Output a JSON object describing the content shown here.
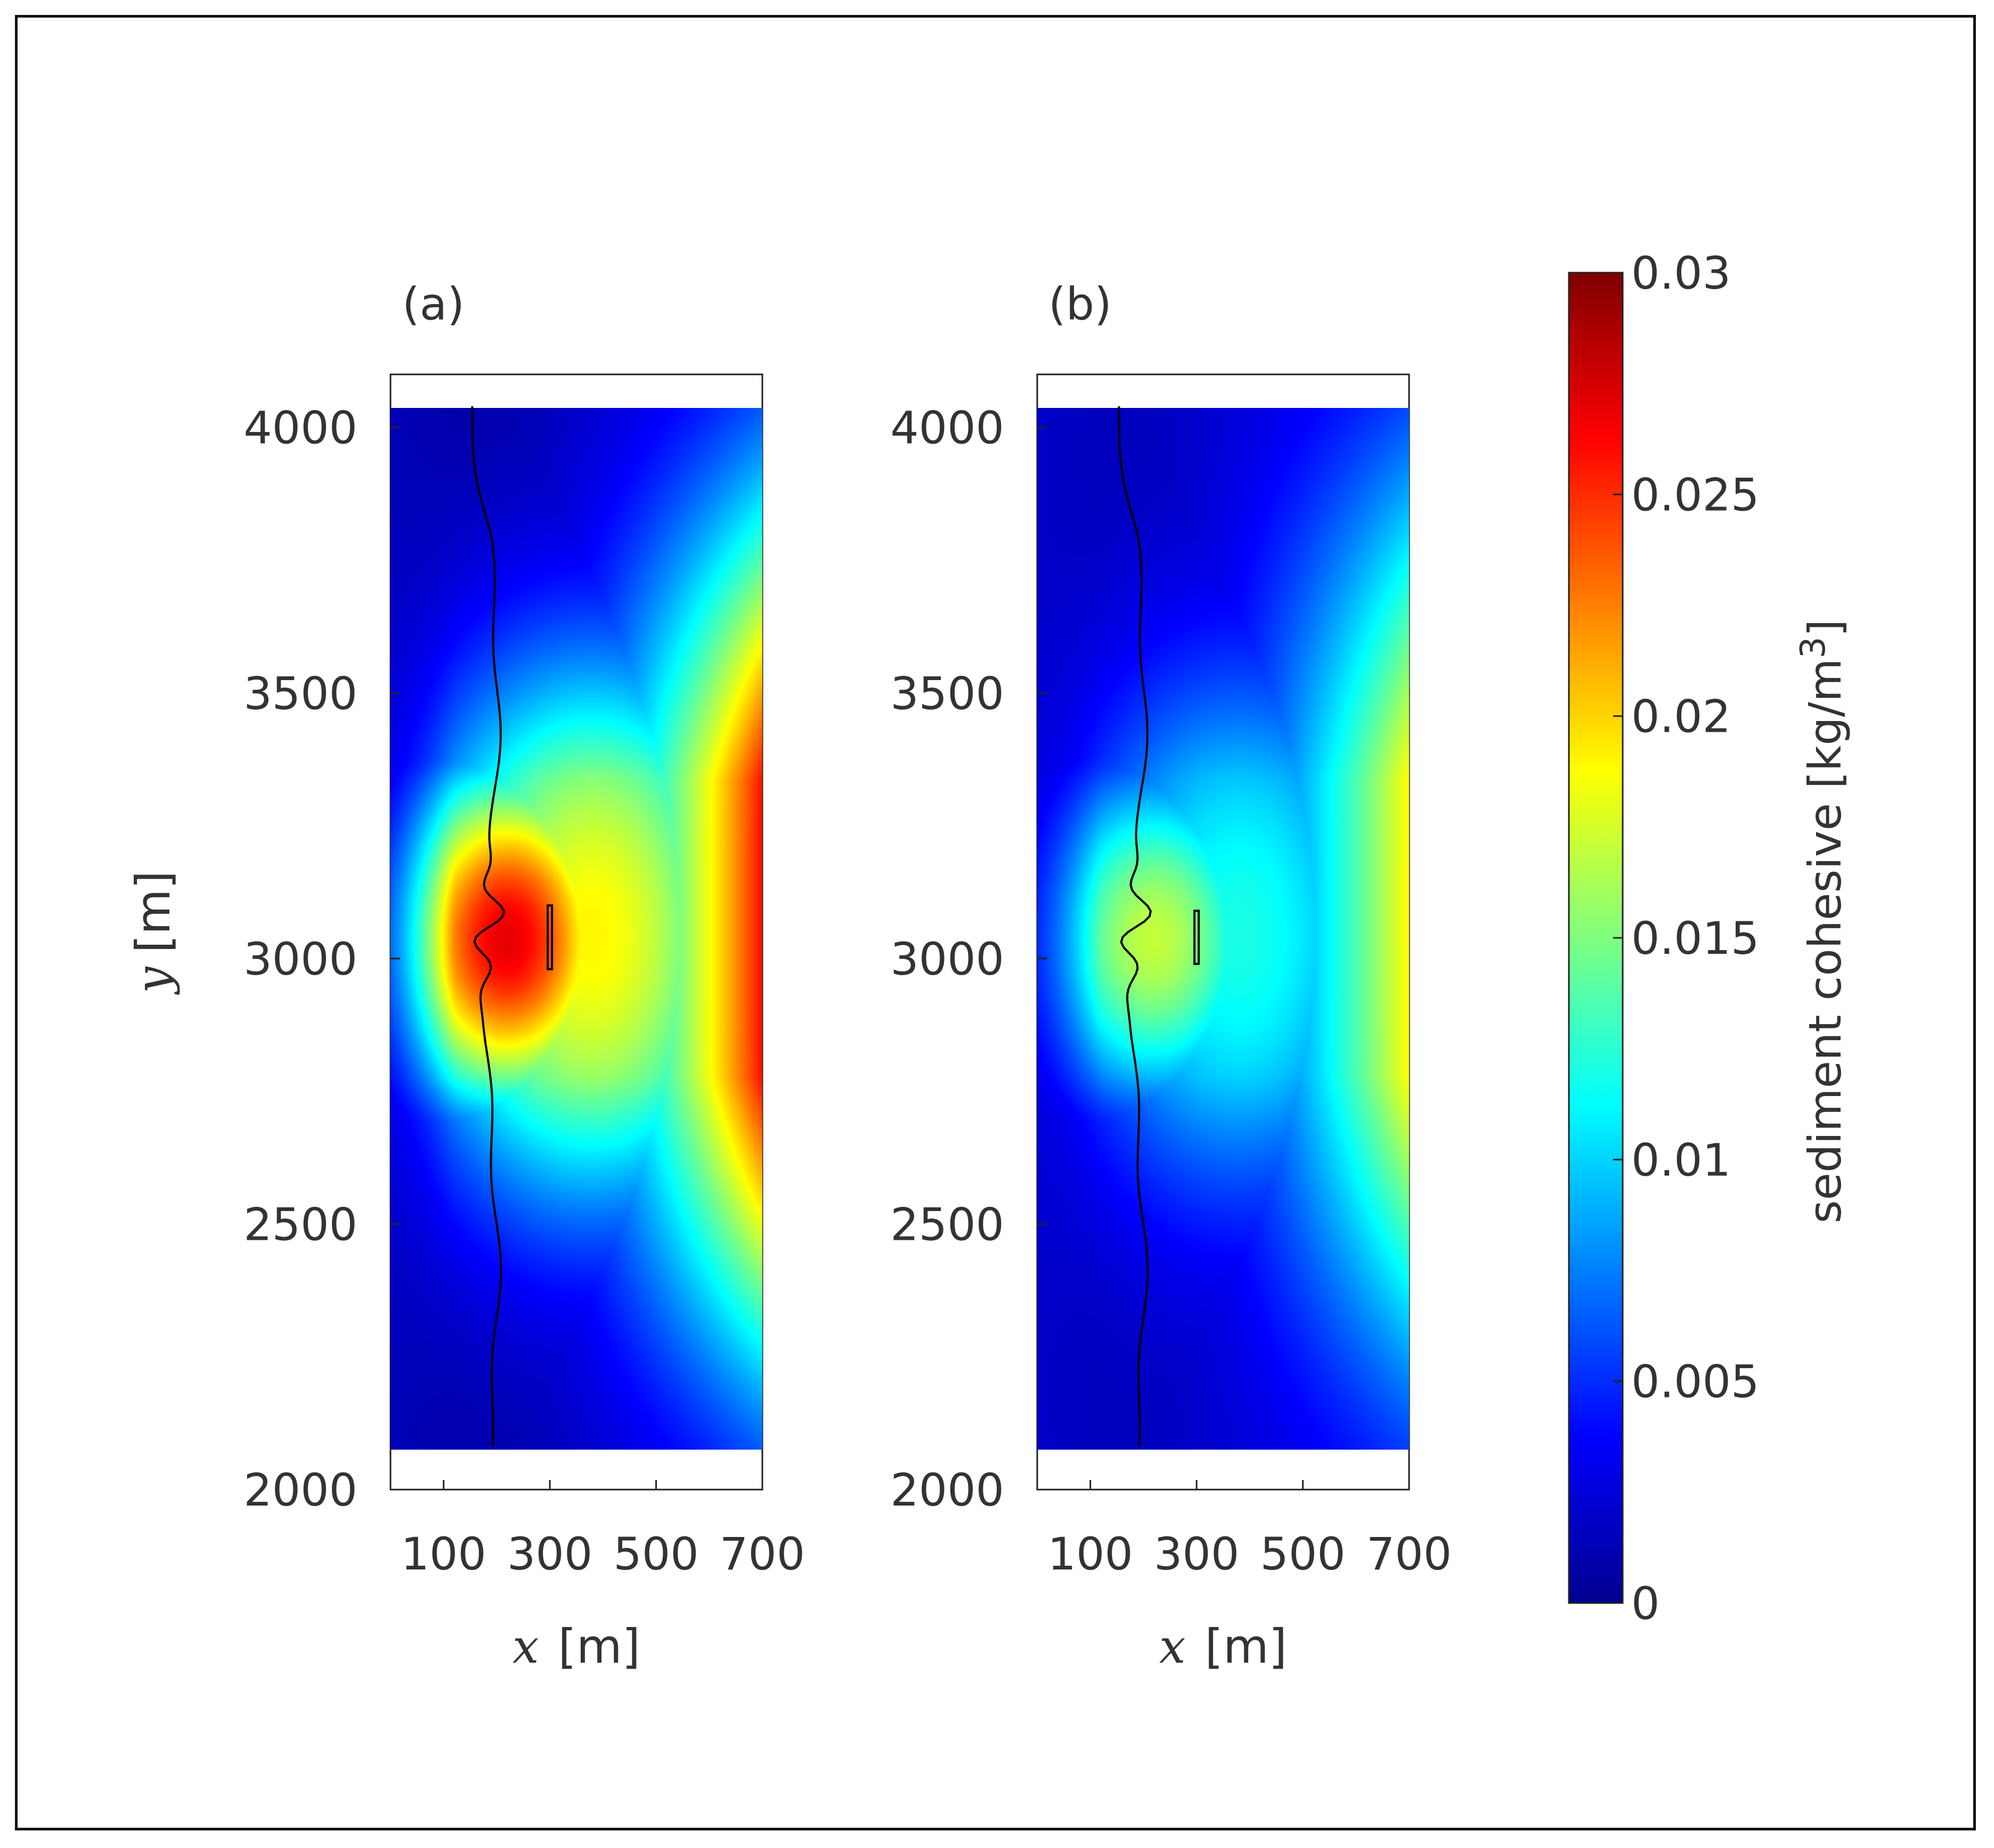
{
  "chart_data": [
    {
      "type": "heatmap",
      "panel_label": "(a)",
      "xlabel_var": "x",
      "xlabel_unit": "[m]",
      "ylabel_var": "y",
      "ylabel_unit": "[m]",
      "xlim": [
        0,
        700
      ],
      "ylim": [
        2000,
        4100
      ],
      "data_extent_y": [
        2080,
        4040
      ],
      "xticks": [
        100,
        300,
        500,
        700
      ],
      "yticks": [
        2000,
        2500,
        3000,
        3500,
        4000
      ],
      "field": {
        "center_hotspot": {
          "x": 220,
          "y": 3040,
          "value": 0.027
        },
        "right_edge_max": 0.026,
        "right_edge_extent_y": [
          2300,
          3800
        ],
        "mid_band_value": 0.019,
        "corner_value": 0.001,
        "left_edge_value": 0.003
      },
      "shoreline_x_approx": 190,
      "structure": {
        "x": 300,
        "y_range": [
          2980,
          3100
        ]
      }
    },
    {
      "type": "heatmap",
      "panel_label": "(b)",
      "xlabel_var": "x",
      "xlabel_unit": "[m]",
      "ylabel_var": "",
      "ylabel_unit": "",
      "xlim": [
        0,
        700
      ],
      "ylim": [
        2000,
        4100
      ],
      "data_extent_y": [
        2080,
        4040
      ],
      "xticks": [
        100,
        300,
        500,
        700
      ],
      "yticks": [
        2000,
        2500,
        3000,
        3500,
        4000
      ],
      "field": {
        "center_hotspot": {
          "x": 220,
          "y": 3040,
          "value": 0.017
        },
        "right_edge_max": 0.019,
        "right_edge_extent_y": [
          2300,
          3900
        ],
        "mid_band_value": 0.012,
        "corner_value": 0.002,
        "left_edge_value": 0.004
      },
      "shoreline_x_approx": 190,
      "structure": {
        "x": 300,
        "y_range": [
          2990,
          3090
        ]
      }
    }
  ],
  "colorbar": {
    "label": "sediment  cohesive [kg/m",
    "label_sup": "3",
    "label_close": "]",
    "min": 0,
    "max": 0.03,
    "ticks": [
      "0",
      "0.005",
      "0.01",
      "0.015",
      "0.02",
      "0.025",
      "0.03"
    ],
    "colormap": "jet",
    "stops": [
      "#00008f",
      "#0000ff",
      "#00ffff",
      "#ffff00",
      "#ff0000",
      "#800000"
    ]
  }
}
